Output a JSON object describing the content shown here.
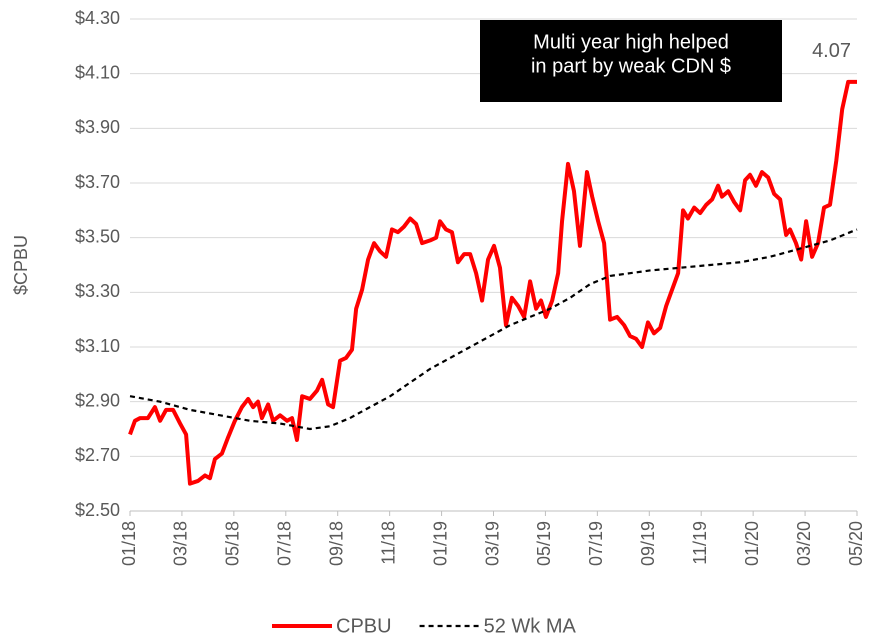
{
  "chart_data": {
    "type": "line",
    "y_label": "$CPBU",
    "annotation": [
      "Multi year high helped",
      "in part by weak CDN $"
    ],
    "xlim": [
      0,
      28
    ],
    "xticks": [
      {
        "value": 0,
        "label": "01/18"
      },
      {
        "value": 2,
        "label": "03/18"
      },
      {
        "value": 4,
        "label": "05/18"
      },
      {
        "value": 6,
        "label": "07/18"
      },
      {
        "value": 8,
        "label": "09/18"
      },
      {
        "value": 10,
        "label": "11/18"
      },
      {
        "value": 12,
        "label": "01/19"
      },
      {
        "value": 14,
        "label": "03/19"
      },
      {
        "value": 16,
        "label": "05/19"
      },
      {
        "value": 18,
        "label": "07/19"
      },
      {
        "value": 20,
        "label": "09/19"
      },
      {
        "value": 22,
        "label": "11/19"
      },
      {
        "value": 24,
        "label": "01/20"
      },
      {
        "value": 26,
        "label": "03/20"
      },
      {
        "value": 28,
        "label": "05/20"
      }
    ],
    "ylim": [
      2.5,
      4.3
    ],
    "yticks": [
      {
        "value": 2.5,
        "label": "$2.50"
      },
      {
        "value": 2.7,
        "label": "$2.70"
      },
      {
        "value": 2.9,
        "label": "$2.90"
      },
      {
        "value": 3.1,
        "label": "$3.10"
      },
      {
        "value": 3.3,
        "label": "$3.30"
      },
      {
        "value": 3.5,
        "label": "$3.50"
      },
      {
        "value": 3.7,
        "label": "$3.70"
      },
      {
        "value": 3.9,
        "label": "$3.90"
      },
      {
        "value": 4.1,
        "label": "$4.10"
      },
      {
        "value": 4.3,
        "label": "$4.30"
      }
    ],
    "grid": true,
    "legend": "bottom",
    "series": [
      {
        "name": "CPBU",
        "color": "#ff0000",
        "dash": false,
        "x": [
          0,
          0.19,
          0.39,
          0.69,
          0.96,
          1.16,
          1.39,
          1.66,
          1.93,
          2.16,
          2.31,
          2.62,
          2.89,
          3.08,
          3.27,
          3.54,
          3.78,
          4.04,
          4.31,
          4.55,
          4.74,
          4.93,
          5.08,
          5.32,
          5.51,
          5.78,
          6.05,
          6.24,
          6.43,
          6.63,
          6.93,
          7.2,
          7.4,
          7.63,
          7.82,
          8.09,
          8.32,
          8.55,
          8.71,
          8.94,
          9.17,
          9.4,
          9.63,
          9.86,
          10.09,
          10.32,
          10.55,
          10.79,
          11.02,
          11.25,
          11.56,
          11.79,
          11.94,
          12.17,
          12.4,
          12.63,
          12.87,
          13.1,
          13.33,
          13.56,
          13.79,
          14.02,
          14.25,
          14.48,
          14.71,
          14.95,
          15.18,
          15.41,
          15.64,
          15.83,
          16.02,
          16.26,
          16.49,
          16.64,
          16.87,
          17.1,
          17.33,
          17.6,
          17.8,
          18.03,
          18.26,
          18.49,
          18.76,
          19.03,
          19.26,
          19.49,
          19.72,
          19.95,
          20.18,
          20.42,
          20.65,
          20.88,
          21.11,
          21.3,
          21.49,
          21.73,
          21.96,
          22.19,
          22.42,
          22.65,
          22.8,
          23.04,
          23.27,
          23.5,
          23.69,
          23.88,
          24.11,
          24.34,
          24.58,
          24.81,
          25.04,
          25.27,
          25.42,
          25.65,
          25.85,
          26.04,
          26.27,
          26.5,
          26.73,
          26.96,
          27.2,
          27.43,
          27.66,
          28
        ],
        "values": [
          2.78,
          2.83,
          2.84,
          2.84,
          2.88,
          2.83,
          2.87,
          2.87,
          2.82,
          2.78,
          2.6,
          2.61,
          2.63,
          2.62,
          2.69,
          2.71,
          2.77,
          2.83,
          2.88,
          2.91,
          2.88,
          2.9,
          2.84,
          2.89,
          2.83,
          2.85,
          2.83,
          2.84,
          2.76,
          2.92,
          2.91,
          2.94,
          2.98,
          2.89,
          2.88,
          3.05,
          3.06,
          3.09,
          3.24,
          3.31,
          3.42,
          3.48,
          3.45,
          3.43,
          3.53,
          3.52,
          3.54,
          3.57,
          3.55,
          3.48,
          3.49,
          3.5,
          3.56,
          3.53,
          3.52,
          3.41,
          3.44,
          3.44,
          3.37,
          3.27,
          3.42,
          3.47,
          3.39,
          3.18,
          3.28,
          3.25,
          3.21,
          3.34,
          3.24,
          3.27,
          3.21,
          3.27,
          3.37,
          3.56,
          3.77,
          3.67,
          3.47,
          3.74,
          3.65,
          3.56,
          3.48,
          3.2,
          3.21,
          3.18,
          3.14,
          3.13,
          3.1,
          3.19,
          3.15,
          3.17,
          3.25,
          3.31,
          3.37,
          3.6,
          3.57,
          3.61,
          3.59,
          3.62,
          3.64,
          3.69,
          3.65,
          3.67,
          3.63,
          3.6,
          3.71,
          3.73,
          3.69,
          3.74,
          3.72,
          3.66,
          3.64,
          3.51,
          3.53,
          3.48,
          3.42,
          3.56,
          3.43,
          3.48,
          3.61,
          3.62,
          3.78,
          3.97,
          4.07,
          4.07
        ]
      },
      {
        "name": "52 Wk MA",
        "color": "#000000",
        "dash": true,
        "x": [
          0,
          1.16,
          2.31,
          3.47,
          4.62,
          5.78,
          6.93,
          7.7,
          8.47,
          9.24,
          10.02,
          10.79,
          11.56,
          12.33,
          13.1,
          13.87,
          14.64,
          15.41,
          16.18,
          16.95,
          17.72,
          18.49,
          19.26,
          20.03,
          21.19,
          22.34,
          23.5,
          24.65,
          25.81,
          26.96,
          28
        ],
        "values": [
          2.92,
          2.9,
          2.87,
          2.85,
          2.83,
          2.82,
          2.8,
          2.81,
          2.84,
          2.88,
          2.92,
          2.97,
          3.02,
          3.06,
          3.1,
          3.14,
          3.18,
          3.21,
          3.24,
          3.28,
          3.33,
          3.36,
          3.37,
          3.38,
          3.39,
          3.4,
          3.41,
          3.43,
          3.46,
          3.49,
          3.53
        ]
      }
    ]
  }
}
